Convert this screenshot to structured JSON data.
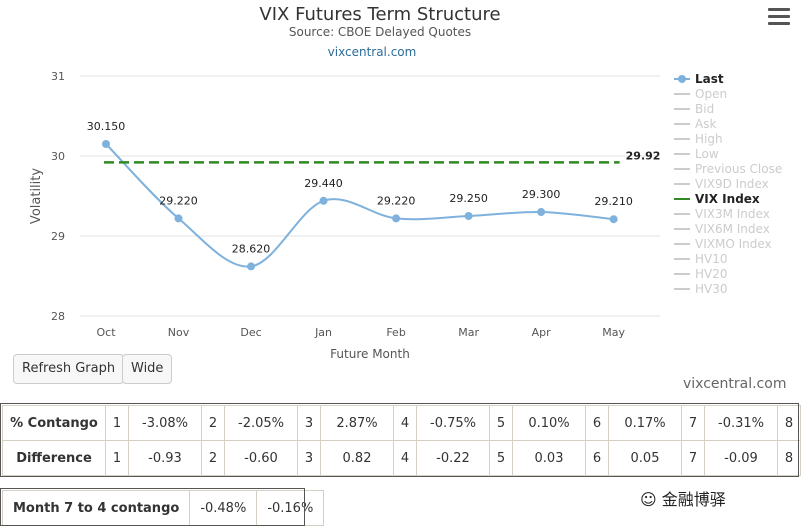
{
  "chart_data": {
    "type": "line",
    "title": "VIX Futures Term Structure",
    "subtitle": "Source: CBOE Delayed Quotes",
    "credit": "vixcentral.com",
    "xlabel": "Future Month",
    "ylabel": "Volatility",
    "ylim": [
      28,
      31
    ],
    "yticks": [
      28,
      29,
      30,
      31
    ],
    "categories": [
      "Oct",
      "Nov",
      "Dec",
      "Jan",
      "Feb",
      "Mar",
      "Apr",
      "May"
    ],
    "series": [
      {
        "name": "Last",
        "values": [
          30.15,
          29.22,
          28.62,
          29.44,
          29.22,
          29.25,
          29.3,
          29.21
        ],
        "labels": [
          "30.150",
          "29.220",
          "28.620",
          "29.440",
          "29.220",
          "29.250",
          "29.300",
          "29.210"
        ],
        "color": "#7eb2dd"
      },
      {
        "name": "VIX Index",
        "value": 29.92,
        "label": "29.92",
        "color": "#2e8b22"
      }
    ],
    "legend_position": "right",
    "legend": [
      {
        "name": "Last",
        "active": true
      },
      {
        "name": "Open",
        "active": false
      },
      {
        "name": "Bid",
        "active": false
      },
      {
        "name": "Ask",
        "active": false
      },
      {
        "name": "High",
        "active": false
      },
      {
        "name": "Low",
        "active": false
      },
      {
        "name": "Previous Close",
        "active": false
      },
      {
        "name": "VIX9D Index",
        "active": false
      },
      {
        "name": "VIX Index",
        "active": true
      },
      {
        "name": "VIX3M Index",
        "active": false
      },
      {
        "name": "VIX6M Index",
        "active": false
      },
      {
        "name": "VIXMO Index",
        "active": false
      },
      {
        "name": "HV10",
        "active": false
      },
      {
        "name": "HV20",
        "active": false
      },
      {
        "name": "HV30",
        "active": false
      }
    ]
  },
  "buttons": {
    "refresh": "Refresh Graph",
    "wide": "Wide"
  },
  "site_credit": "vixcentral.com",
  "contango_table": {
    "rows": [
      {
        "label": "% Contango",
        "cells": [
          [
            "1",
            "-3.08%"
          ],
          [
            "2",
            "-2.05%"
          ],
          [
            "3",
            "2.87%"
          ],
          [
            "4",
            "-0.75%"
          ],
          [
            "5",
            "0.10%"
          ],
          [
            "6",
            "0.17%"
          ],
          [
            "7",
            "-0.31%"
          ],
          [
            "8",
            ""
          ]
        ]
      },
      {
        "label": "Difference",
        "cells": [
          [
            "1",
            "-0.93"
          ],
          [
            "2",
            "-0.60"
          ],
          [
            "3",
            "0.82"
          ],
          [
            "4",
            "-0.22"
          ],
          [
            "5",
            "0.03"
          ],
          [
            "6",
            "0.05"
          ],
          [
            "7",
            "-0.09"
          ],
          [
            "8",
            ""
          ]
        ]
      }
    ]
  },
  "month_table": {
    "label": "Month 7 to 4 contango",
    "values": [
      "-0.48%",
      "-0.16%"
    ]
  },
  "watermark": "金融博驿"
}
